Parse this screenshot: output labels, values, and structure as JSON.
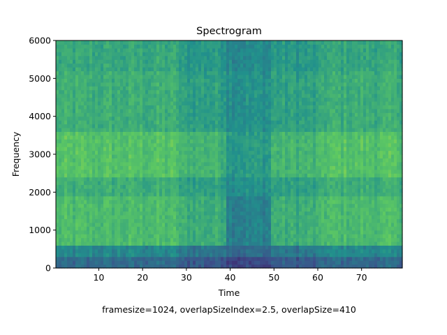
{
  "chart_data": {
    "type": "heatmap",
    "title": "Spectrogram",
    "xlabel": "Time",
    "ylabel": "Frequency",
    "caption": "framesize=1024, overlapSizeIndex=2.5, overlapSize=410",
    "xlim": [
      0.2,
      79.3
    ],
    "ylim": [
      0,
      6000
    ],
    "x_ticks": [
      10,
      20,
      30,
      40,
      50,
      60,
      70
    ],
    "y_ticks": [
      0,
      1000,
      2000,
      3000,
      4000,
      5000,
      6000
    ],
    "colormap": "viridis",
    "grid": false,
    "segments": [
      {
        "start": 0.2,
        "end": 9.7,
        "energy": "high"
      },
      {
        "start": 9.7,
        "end": 28.2,
        "energy": "high"
      },
      {
        "start": 28.2,
        "end": 39.3,
        "energy": "medium"
      },
      {
        "start": 39.3,
        "end": 49.5,
        "energy": "low"
      },
      {
        "start": 49.5,
        "end": 60.7,
        "energy": "medium"
      },
      {
        "start": 60.7,
        "end": 79.3,
        "energy": "high"
      }
    ]
  },
  "colors": {
    "low": "#2c758e",
    "mid": "#25a085",
    "high": "#7ad151",
    "peak": "#c8e020"
  }
}
